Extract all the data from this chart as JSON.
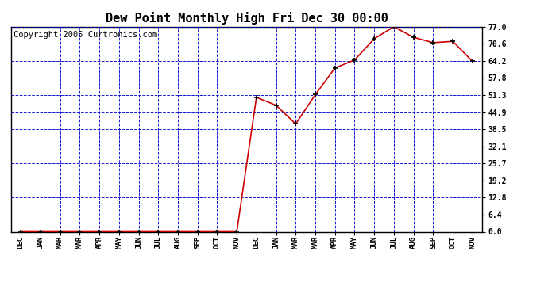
{
  "title": "Dew Point Monthly High Fri Dec 30 00:00",
  "copyright": "Copyright 2005 Curtronics.com",
  "x_labels": [
    "DEC",
    "JAN",
    "MAR",
    "MAR",
    "APR",
    "MAY",
    "JUN",
    "JUL",
    "AUG",
    "SEP",
    "OCT",
    "NOV",
    "DEC",
    "JAN",
    "MAR",
    "MAR",
    "APR",
    "MAY",
    "JUN",
    "JUL",
    "AUG",
    "SEP",
    "OCT",
    "NOV"
  ],
  "y_values": [
    0.0,
    0.0,
    0.0,
    0.0,
    0.0,
    0.0,
    0.0,
    0.0,
    0.0,
    0.0,
    0.0,
    0.0,
    50.5,
    47.5,
    40.5,
    51.5,
    61.5,
    64.5,
    72.5,
    77.0,
    73.0,
    71.0,
    71.5,
    64.0
  ],
  "y_ticks": [
    0.0,
    6.4,
    12.8,
    19.2,
    25.7,
    32.1,
    38.5,
    44.9,
    51.3,
    57.8,
    64.2,
    70.6,
    77.0
  ],
  "y_min": 0.0,
  "y_max": 77.0,
  "line_color": "#cc0000",
  "marker_color": "#000000",
  "grid_color": "#0000cc",
  "background_color": "#ffffff",
  "title_fontsize": 11,
  "copyright_fontsize": 7.5
}
